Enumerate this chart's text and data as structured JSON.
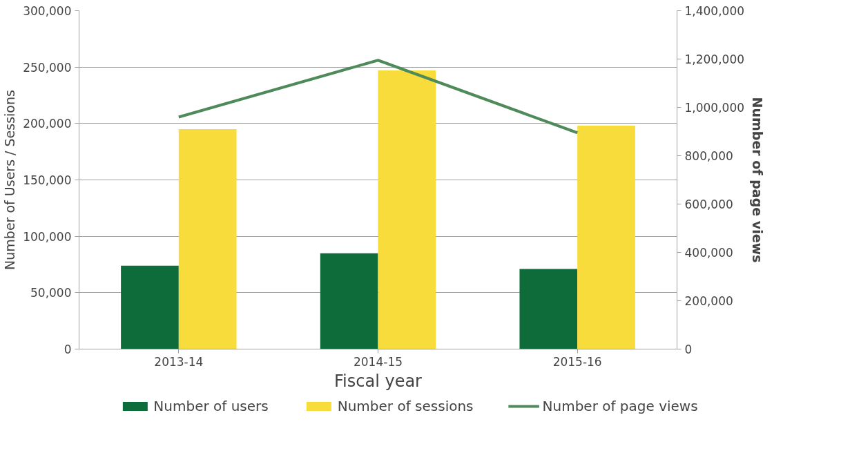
{
  "chart_data": {
    "type": "bar",
    "xlabel": "Fiscal year",
    "ylabel": "Number of Users / Sessions",
    "y2label": "Number of page views",
    "categories": [
      "2013-14",
      "2014-15",
      "2015-16"
    ],
    "series": [
      {
        "name": "Number of users",
        "color": "#0e6b3a",
        "values": [
          74000,
          85000,
          71000
        ]
      },
      {
        "name": "Number of sessions",
        "color": "#f7dc3c",
        "values": [
          195000,
          247000,
          198000
        ]
      },
      {
        "name": "Number of page views",
        "color": "#4e8a5a",
        "type": "line",
        "axis": "y2",
        "values": [
          960000,
          1195000,
          895000
        ]
      }
    ],
    "ylim": [
      0,
      300000
    ],
    "yticks": [
      {
        "value": 0,
        "label": "0"
      },
      {
        "value": 50000,
        "label": "50,000"
      },
      {
        "value": 100000,
        "label": "100,000"
      },
      {
        "value": 150000,
        "label": "150,000"
      },
      {
        "value": 200000,
        "label": "200,000"
      },
      {
        "value": 250000,
        "label": "250,000"
      },
      {
        "value": 300000,
        "label": "300,000"
      }
    ],
    "y2lim": [
      0,
      1400000
    ],
    "y2ticks": [
      {
        "value": 0,
        "label": "0"
      },
      {
        "value": 200000,
        "label": "200,000"
      },
      {
        "value": 400000,
        "label": "400,000"
      },
      {
        "value": 600000,
        "label": "600,000"
      },
      {
        "value": 800000,
        "label": "800,000"
      },
      {
        "value": 1000000,
        "label": "1,000,000"
      },
      {
        "value": 1200000,
        "label": "1,200,000"
      },
      {
        "value": 1400000,
        "label": "1,400,000"
      }
    ],
    "grid": "y",
    "legend": "bottom"
  }
}
